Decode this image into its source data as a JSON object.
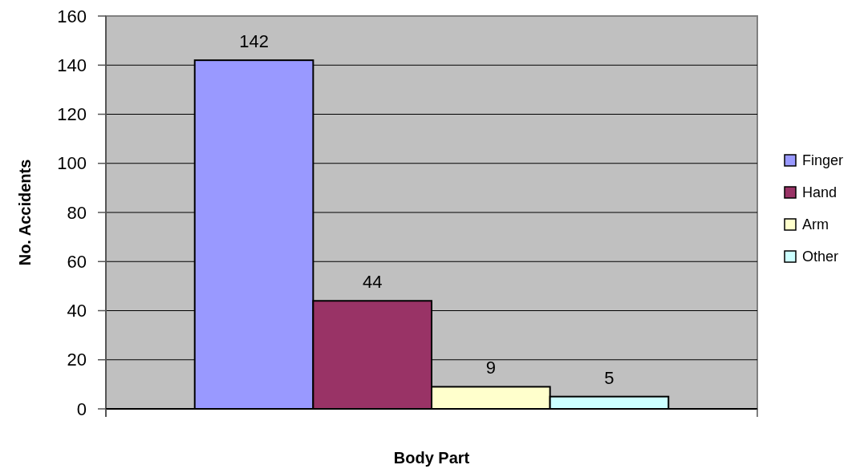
{
  "chart_data": {
    "type": "bar",
    "xlabel": "Body Part",
    "ylabel": "No. Accidents",
    "categories": [
      null
    ],
    "series": [
      {
        "name": "Finger",
        "color": "#9999ff",
        "values": [
          142
        ]
      },
      {
        "name": "Hand",
        "color": "#993366",
        "values": [
          44
        ]
      },
      {
        "name": "Arm",
        "color": "#ffffcc",
        "values": [
          9
        ]
      },
      {
        "name": "Other",
        "color": "#ccffff",
        "values": [
          5
        ]
      }
    ],
    "ylim": [
      0,
      160
    ],
    "yticks": [
      0,
      20,
      40,
      60,
      80,
      100,
      120,
      140,
      160
    ],
    "grid": "y",
    "legend": "right",
    "data_labels": true
  }
}
